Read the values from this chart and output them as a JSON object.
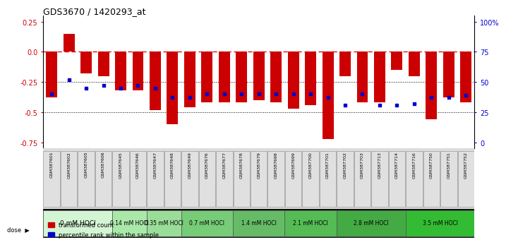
{
  "title": "GDS3670 / 1420293_at",
  "samples": [
    "GSM387601",
    "GSM387602",
    "GSM387605",
    "GSM387606",
    "GSM387645",
    "GSM387646",
    "GSM387647",
    "GSM387648",
    "GSM387649",
    "GSM387676",
    "GSM387677",
    "GSM387678",
    "GSM387679",
    "GSM387698",
    "GSM387699",
    "GSM387700",
    "GSM387701",
    "GSM387702",
    "GSM387703",
    "GSM387713",
    "GSM387714",
    "GSM387716",
    "GSM387750",
    "GSM387751",
    "GSM387752"
  ],
  "red_values": [
    -0.38,
    0.15,
    -0.18,
    -0.2,
    -0.32,
    -0.32,
    -0.48,
    -0.6,
    -0.46,
    -0.42,
    -0.42,
    -0.42,
    -0.4,
    -0.42,
    -0.47,
    -0.44,
    -0.72,
    -0.2,
    -0.42,
    -0.42,
    -0.15,
    -0.2,
    -0.56,
    -0.38,
    -0.42
  ],
  "blue_values": [
    -0.35,
    -0.23,
    -0.3,
    -0.28,
    -0.3,
    -0.28,
    -0.3,
    -0.38,
    -0.38,
    -0.35,
    -0.35,
    -0.35,
    -0.35,
    -0.35,
    -0.35,
    -0.35,
    -0.38,
    -0.44,
    -0.35,
    -0.44,
    -0.44,
    -0.43,
    -0.38,
    -0.38,
    -0.36
  ],
  "dose_groups": [
    {
      "label": "0 mM HOCl",
      "start": 0,
      "end": 4,
      "color": "#d4f5d4",
      "fontsize": 6.5
    },
    {
      "label": "0.14 mM HOCl",
      "start": 4,
      "end": 6,
      "color": "#aae8aa",
      "fontsize": 5.5
    },
    {
      "label": "0.35 mM HOCl",
      "start": 6,
      "end": 8,
      "color": "#99dd99",
      "fontsize": 5.5
    },
    {
      "label": "0.7 mM HOCl",
      "start": 8,
      "end": 11,
      "color": "#77cc77",
      "fontsize": 5.5
    },
    {
      "label": "1.4 mM HOCl",
      "start": 11,
      "end": 14,
      "color": "#66bb66",
      "fontsize": 5.5
    },
    {
      "label": "2.1 mM HOCl",
      "start": 14,
      "end": 17,
      "color": "#55bb55",
      "fontsize": 5.5
    },
    {
      "label": "2.8 mM HOCl",
      "start": 17,
      "end": 21,
      "color": "#44aa44",
      "fontsize": 5.5
    },
    {
      "label": "3.5 mM HOCl",
      "start": 21,
      "end": 25,
      "color": "#33bb33",
      "fontsize": 5.5
    }
  ],
  "ylim": [
    -0.8,
    0.3
  ],
  "yticks_left": [
    0.25,
    0.0,
    -0.25,
    -0.5,
    -0.75
  ],
  "yticks_right_labels": [
    "100%",
    "75",
    "50",
    "25",
    "0"
  ],
  "bar_color": "#cc0000",
  "blue_color": "#0000cc",
  "hline_color": "#cc0000",
  "dotline_color": "#000000",
  "bg_color": "#ffffff"
}
